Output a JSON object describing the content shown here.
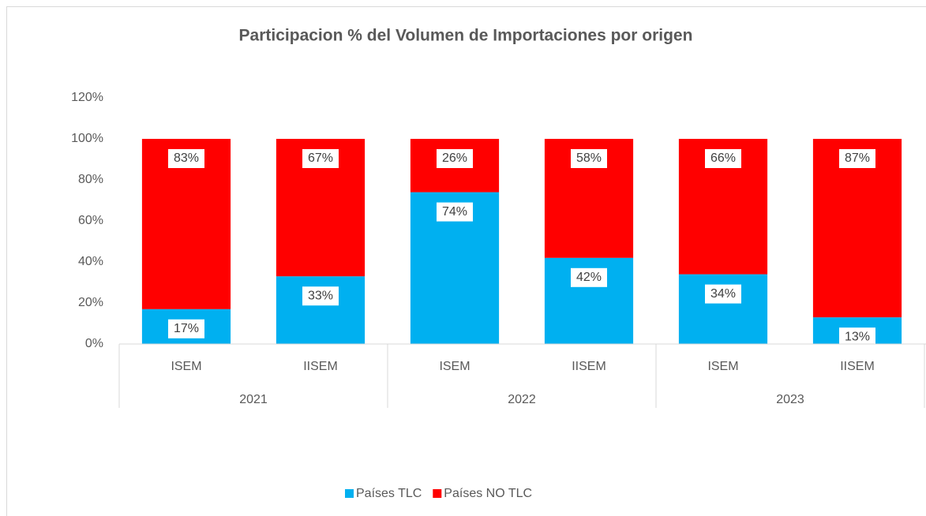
{
  "chart_data": {
    "type": "stacked_bar",
    "title": "Participacion % del Volumen de Importaciones por origen",
    "categories": [
      "ISEM",
      "IISEM",
      "ISEM",
      "IISEM",
      "ISEM",
      "IISEM"
    ],
    "groups": [
      "2021",
      "2022",
      "2023"
    ],
    "series": [
      {
        "name": "Países TLC",
        "color": "#00b0f0",
        "values": [
          17,
          33,
          74,
          42,
          34,
          13
        ],
        "value_labels": [
          "17%",
          "33%",
          "74%",
          "42%",
          "34%",
          "13%"
        ]
      },
      {
        "name": "Países NO TLC",
        "color": "#ff0000",
        "values": [
          83,
          67,
          26,
          58,
          66,
          87
        ],
        "value_labels": [
          "83%",
          "67%",
          "26%",
          "58%",
          "66%",
          "87%"
        ]
      }
    ],
    "ylim": [
      0,
      120
    ],
    "yticks": [
      {
        "value": 0,
        "label": "0%"
      },
      {
        "value": 20,
        "label": "20%"
      },
      {
        "value": 40,
        "label": "40%"
      },
      {
        "value": 60,
        "label": "60%"
      },
      {
        "value": 80,
        "label": "80%"
      },
      {
        "value": 100,
        "label": "100%"
      },
      {
        "value": 120,
        "label": "120%"
      }
    ],
    "grid": false,
    "legend": "bottom"
  }
}
